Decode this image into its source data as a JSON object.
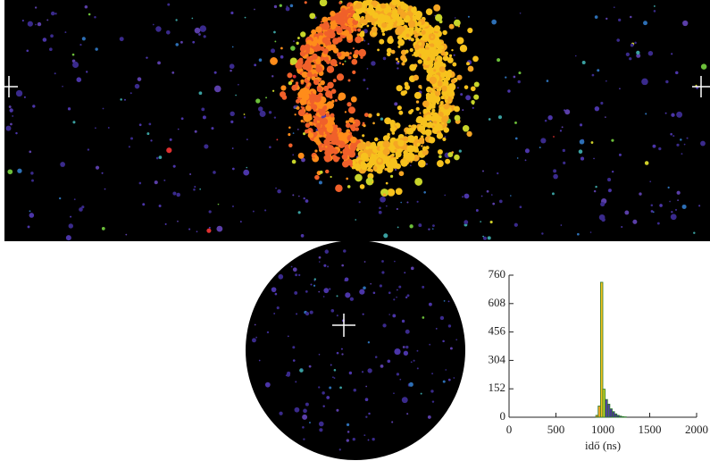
{
  "chart_data": {
    "type": "histogram",
    "xlabel": "idő (ns)",
    "bins": [
      925,
      950,
      975,
      1000,
      1025,
      1050,
      1075,
      1100,
      1125,
      1150,
      1175,
      1200,
      1225,
      1250
    ],
    "values": [
      10,
      60,
      722,
      150,
      95,
      70,
      45,
      30,
      18,
      10,
      6,
      3,
      2
    ],
    "colors": [
      "#ff8c1a",
      "#f5a623",
      "#f7c21d",
      "#c8d52a",
      "#5a3ea8",
      "#5a3ea8",
      "#4b2f9a",
      "#4b2f9a",
      "#4b2f9a",
      "#3d2a8a",
      "#3d2a8a",
      "#3d2a8a",
      "#3d2a8a"
    ],
    "outline": "#2a7a2a",
    "xlim": [
      0,
      2000
    ],
    "xticks": [
      0,
      500,
      1000,
      1500,
      2000
    ],
    "ylim": [
      0,
      760
    ],
    "yticks": [
      0,
      152,
      304,
      456,
      608,
      760
    ]
  }
}
